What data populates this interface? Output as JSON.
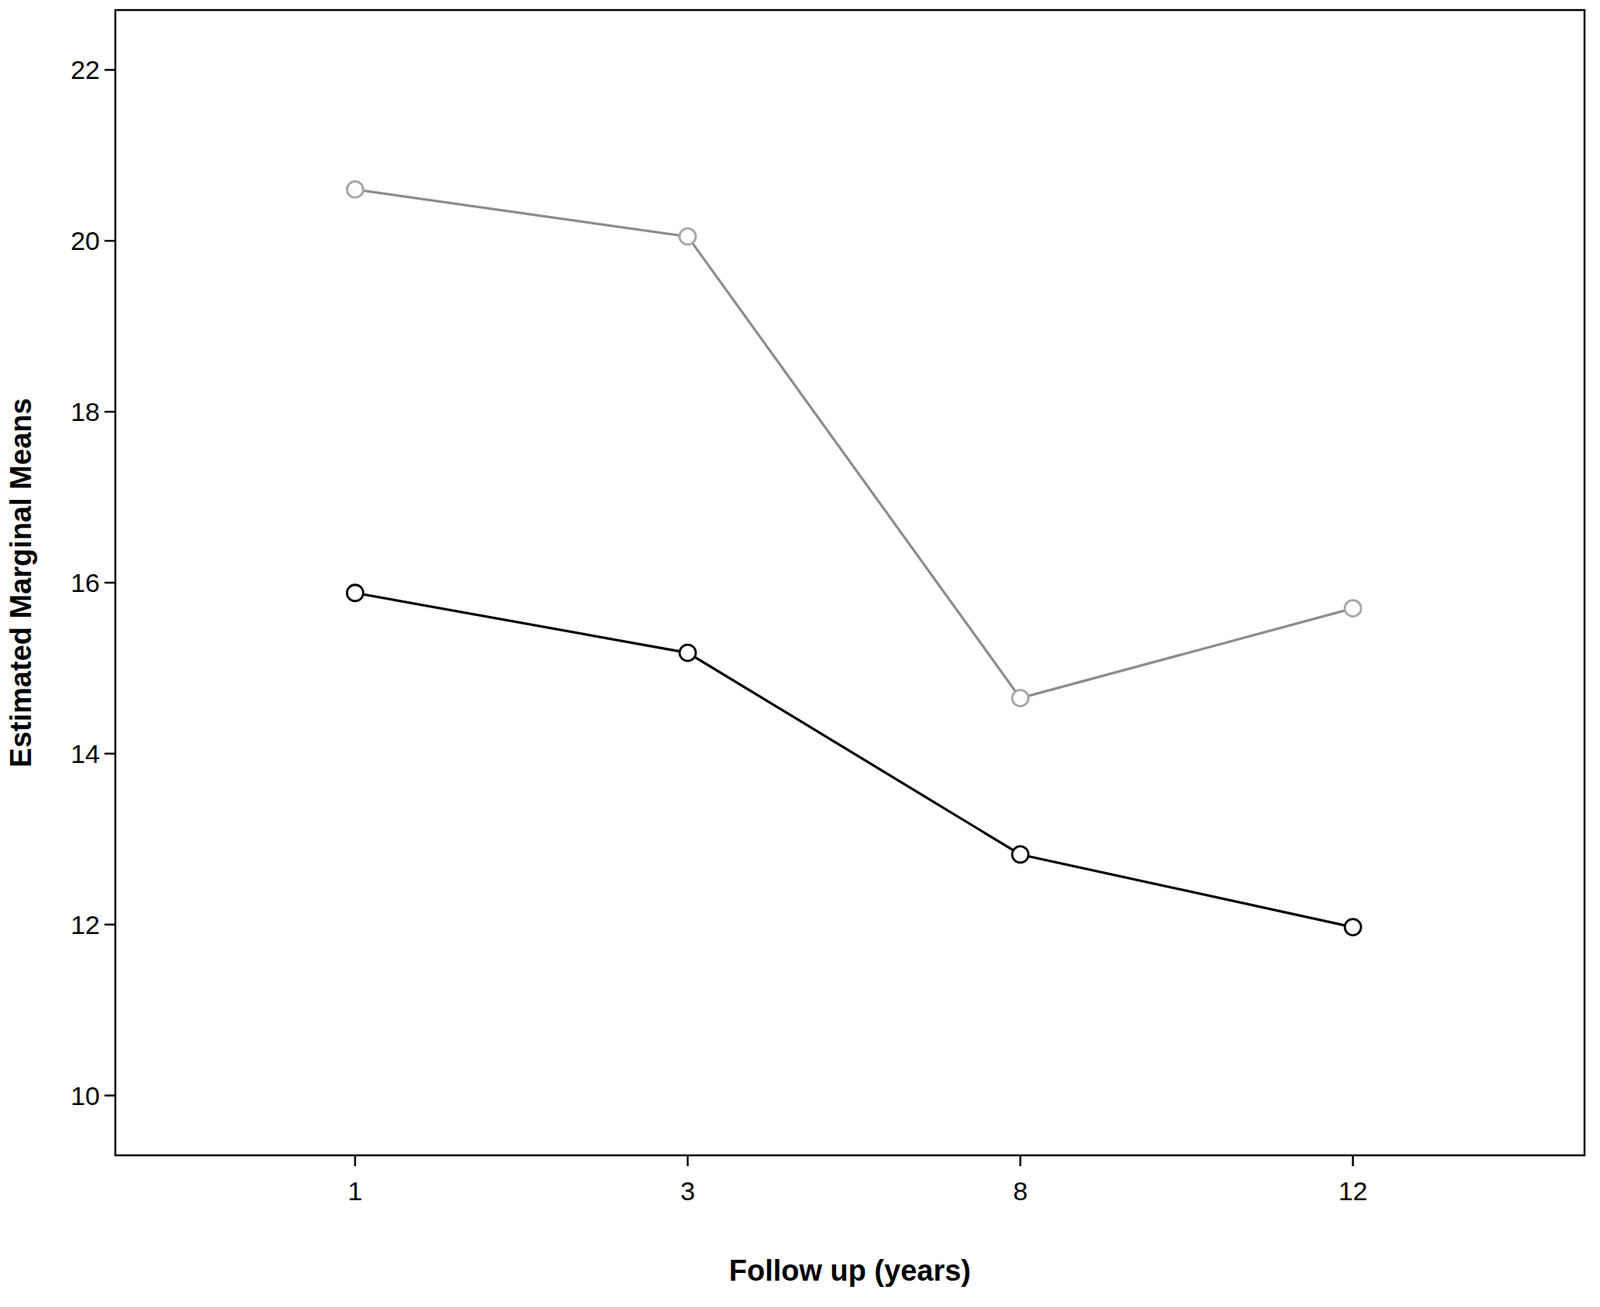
{
  "chart_data": {
    "type": "line",
    "x_label": "Follow up (years)",
    "y_label": "Estimated Marginal Means",
    "categories": [
      "1",
      "3",
      "8",
      "12"
    ],
    "series": [
      {
        "color": "#8c8c8c",
        "marker": "circle",
        "values": [
          20.6,
          20.05,
          14.65,
          15.7
        ]
      },
      {
        "color": "#000000",
        "marker": "circle",
        "values": [
          15.88,
          15.18,
          12.82,
          11.97
        ]
      }
    ],
    "ylim": [
      9.3,
      22.7
    ],
    "yticks": [
      10,
      12,
      14,
      16,
      18,
      20,
      22
    ],
    "grid": false
  }
}
